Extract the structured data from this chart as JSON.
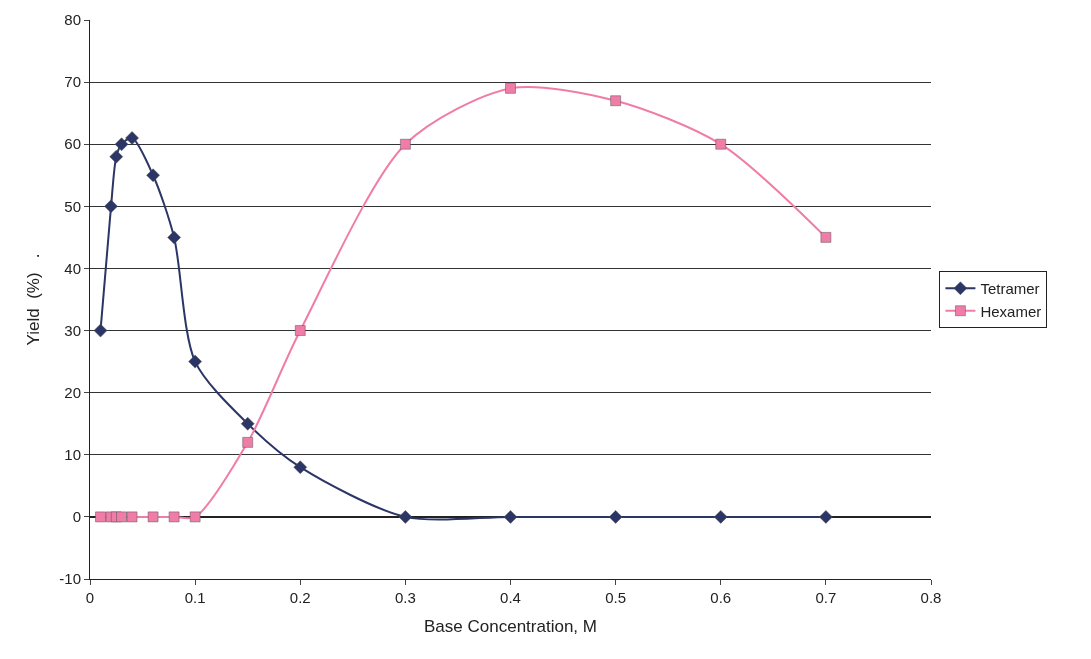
{
  "chart_data": {
    "type": "line",
    "xlabel": "Base Concentration, M",
    "ylabel": "Yield  (%)   .",
    "xlim": [
      0,
      0.8
    ],
    "xticks": [
      0,
      0.1,
      0.2,
      0.3,
      0.4,
      0.5,
      0.6,
      0.7,
      0.8
    ],
    "ylim": [
      -10,
      80
    ],
    "yticks": [
      -10,
      0,
      10,
      20,
      30,
      40,
      50,
      60,
      70,
      80
    ],
    "grid": "y",
    "legend": "right",
    "line_style": "solid",
    "series": [
      {
        "name": "Tetramer",
        "color": "#2b3566",
        "marker": "diamond",
        "x": [
          0.01,
          0.02,
          0.025,
          0.03,
          0.04,
          0.06,
          0.08,
          0.1,
          0.15,
          0.2,
          0.3,
          0.4,
          0.5,
          0.6,
          0.7
        ],
        "values": [
          30,
          50,
          58,
          60,
          61,
          55,
          45,
          25,
          15,
          8,
          0,
          0,
          0,
          0,
          0
        ]
      },
      {
        "name": "Hexamer",
        "color": "#f07ca8",
        "marker": "square",
        "x": [
          0.01,
          0.02,
          0.025,
          0.03,
          0.04,
          0.06,
          0.08,
          0.1,
          0.15,
          0.2,
          0.3,
          0.4,
          0.5,
          0.6,
          0.7
        ],
        "values": [
          0,
          0,
          0,
          0,
          0,
          0,
          0,
          0,
          12,
          30,
          60,
          69,
          67,
          60,
          45
        ]
      }
    ]
  }
}
